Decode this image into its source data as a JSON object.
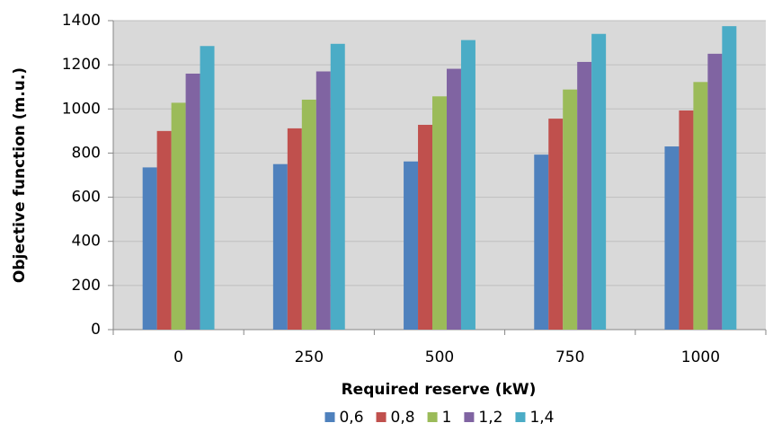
{
  "chart_data": {
    "type": "bar",
    "x_label": "Required reserve (kW)",
    "y_label": "Objective function (m.u.)",
    "categories": [
      "0",
      "250",
      "500",
      "750",
      "1000"
    ],
    "series": [
      {
        "name": "0,6",
        "color": "#4f81bd",
        "values": [
          735,
          750,
          762,
          793,
          830
        ]
      },
      {
        "name": "0,8",
        "color": "#c0504d",
        "values": [
          900,
          912,
          928,
          956,
          993
        ]
      },
      {
        "name": "1",
        "color": "#9bbb59",
        "values": [
          1028,
          1042,
          1057,
          1088,
          1122
        ]
      },
      {
        "name": "1,2",
        "color": "#8064a2",
        "values": [
          1160,
          1170,
          1182,
          1213,
          1250
        ]
      },
      {
        "name": "1,4",
        "color": "#4bacc6",
        "values": [
          1285,
          1295,
          1312,
          1340,
          1375
        ]
      }
    ],
    "ylim": [
      0,
      1400
    ],
    "yticks": [
      0,
      200,
      400,
      600,
      800,
      1000,
      1200,
      1400
    ],
    "grid": true,
    "legend": "bottom"
  }
}
